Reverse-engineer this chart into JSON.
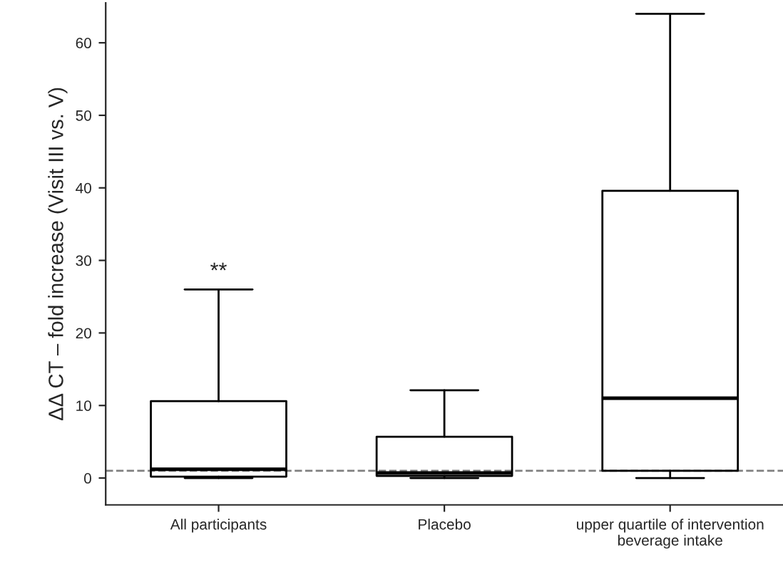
{
  "chart_data": {
    "type": "box",
    "ylabel": "ΔΔ CT – fold increase (Visit III vs. V)",
    "categories": [
      "All participants",
      "Placebo",
      "upper quartile of intervention beverage intake"
    ],
    "boxes": [
      {
        "low": 0,
        "q1": 0.2,
        "median": 1.2,
        "q3": 10.6,
        "high": 26
      },
      {
        "low": 0,
        "q1": 0.3,
        "median": 0.7,
        "q3": 5.7,
        "high": 12.1
      },
      {
        "low": 0,
        "q1": 1,
        "median": 11,
        "q3": 39.6,
        "high": 64
      }
    ],
    "ylim": [
      -3.7,
      65.5
    ],
    "yticks": [
      0,
      10,
      20,
      30,
      40,
      50,
      60
    ],
    "ref_lines": [
      {
        "axis": "y",
        "value": 1,
        "color": "#808080",
        "line_style": "dashed"
      }
    ],
    "annotations": [
      "**"
    ],
    "grid": false
  }
}
